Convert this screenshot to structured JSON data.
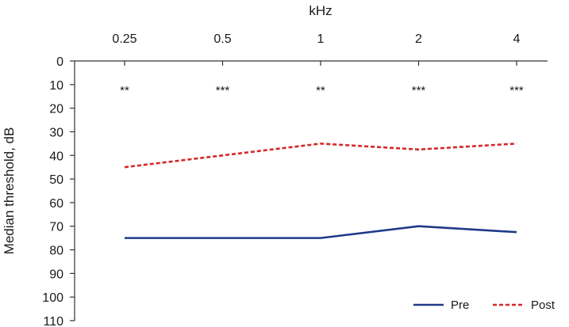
{
  "chart_data": {
    "type": "line",
    "xlabel": "kHz",
    "ylabel": "Median threshold, dB",
    "x_position": "top",
    "y_inverted": true,
    "categories": [
      "0.25",
      "0.5",
      "1",
      "2",
      "4"
    ],
    "ylim": [
      0,
      110
    ],
    "yticks": [
      0,
      10,
      20,
      30,
      40,
      50,
      60,
      70,
      80,
      90,
      100,
      110
    ],
    "series": [
      {
        "name": "Pre",
        "values": [
          75,
          75,
          75,
          70,
          72.5
        ],
        "color": "#1f3a8a",
        "style": "solid"
      },
      {
        "name": "Post",
        "values": [
          45,
          40,
          35,
          37.5,
          35
        ],
        "color": "#d62828",
        "style": "dashed"
      }
    ],
    "annotations": [
      "**",
      "***",
      "**",
      "***",
      "***"
    ],
    "legend": "bottom-right",
    "grid": false
  }
}
